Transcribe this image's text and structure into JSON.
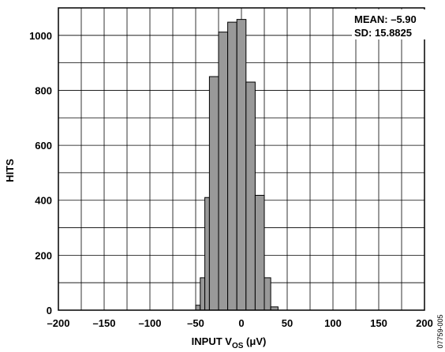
{
  "chart_data": {
    "type": "bar",
    "title": "",
    "xlabel_main": "INPUT V",
    "xlabel_sub": "OS",
    "xlabel_unit": " (μV)",
    "ylabel": "HITS",
    "xlim": [
      -200,
      200
    ],
    "ylim": [
      0,
      1100
    ],
    "xticks": [
      -200,
      -150,
      -100,
      -50,
      0,
      50,
      100,
      150,
      200
    ],
    "xtick_labels": [
      "–200",
      "–150",
      "–100",
      "–50",
      "0",
      "50",
      "100",
      "150",
      "200"
    ],
    "yticks": [
      0,
      200,
      400,
      600,
      800,
      1000
    ],
    "ytick_labels": [
      "0",
      "200",
      "400",
      "600",
      "800",
      "1000"
    ],
    "grid": true,
    "bar_color": "#999999",
    "bar_edge_color": "#000000",
    "bins": [
      {
        "x0": -50,
        "x1": -45,
        "value": 18
      },
      {
        "x0": -45,
        "x1": -40,
        "value": 118
      },
      {
        "x0": -40,
        "x1": -35,
        "value": 410
      },
      {
        "x0": -35,
        "x1": -25,
        "value": 850
      },
      {
        "x0": -25,
        "x1": -15,
        "value": 1012
      },
      {
        "x0": -15,
        "x1": -5,
        "value": 1048
      },
      {
        "x0": -5,
        "x1": 5,
        "value": 1058
      },
      {
        "x0": 5,
        "x1": 15,
        "value": 830
      },
      {
        "x0": 15,
        "x1": 25,
        "value": 418
      },
      {
        "x0": 25,
        "x1": 32,
        "value": 118
      },
      {
        "x0": 32,
        "x1": 40,
        "value": 12
      }
    ],
    "annotations": {
      "mean": "MEAN: –5.90",
      "sd": "SD: 15.8825"
    }
  },
  "figure_code": "07759-005"
}
